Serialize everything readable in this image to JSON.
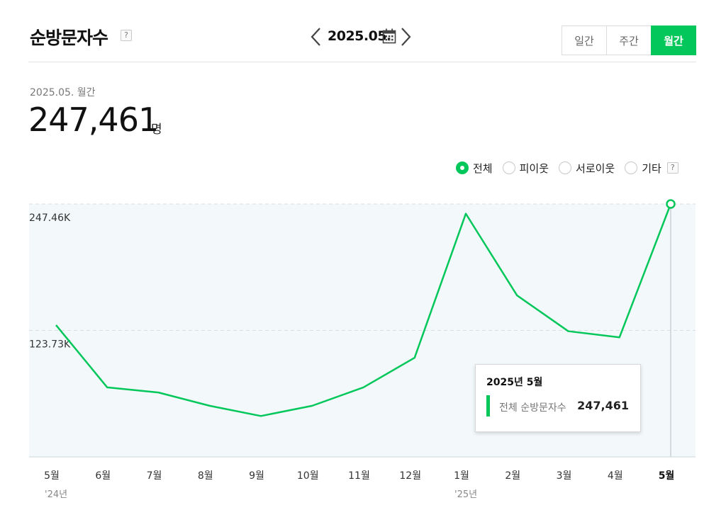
{
  "header": {
    "title": "순방문자수",
    "help": "?",
    "date": "2025.05.",
    "tabs": [
      "일간",
      "주간",
      "월간"
    ],
    "active_tab": "월간"
  },
  "summary": {
    "label": "2025.05. 월간",
    "value": "247,461",
    "unit": "명"
  },
  "filters": {
    "options": [
      "전체",
      "피이웃",
      "서로이웃",
      "기타"
    ],
    "selected": "전체",
    "help": "?"
  },
  "colors": {
    "accent": "#03c75a",
    "plot_bg": "#f3f9fb"
  },
  "chart_data": {
    "type": "line",
    "categories": [
      "5월",
      "6월",
      "7월",
      "8월",
      "9월",
      "10월",
      "11월",
      "12월",
      "1월",
      "2월",
      "3월",
      "4월",
      "5월"
    ],
    "year_labels": [
      {
        "index": 0,
        "label": "'24년"
      },
      {
        "index": 8,
        "label": "'25년"
      }
    ],
    "series": [
      {
        "name": "전체",
        "values": [
          129000,
          68000,
          63000,
          50000,
          40000,
          50000,
          68000,
          97000,
          238000,
          158000,
          123000,
          117000,
          247461
        ]
      }
    ],
    "y_ticks": [
      {
        "value": 123730,
        "label": "123.73K"
      },
      {
        "value": 247460,
        "label": "247.46K"
      }
    ],
    "ylim": [
      0,
      247461
    ],
    "grid": true,
    "highlight_index": 12,
    "tooltip": {
      "title": "2025년 5월",
      "series": "전체 순방문자수",
      "value": "247,461"
    }
  }
}
